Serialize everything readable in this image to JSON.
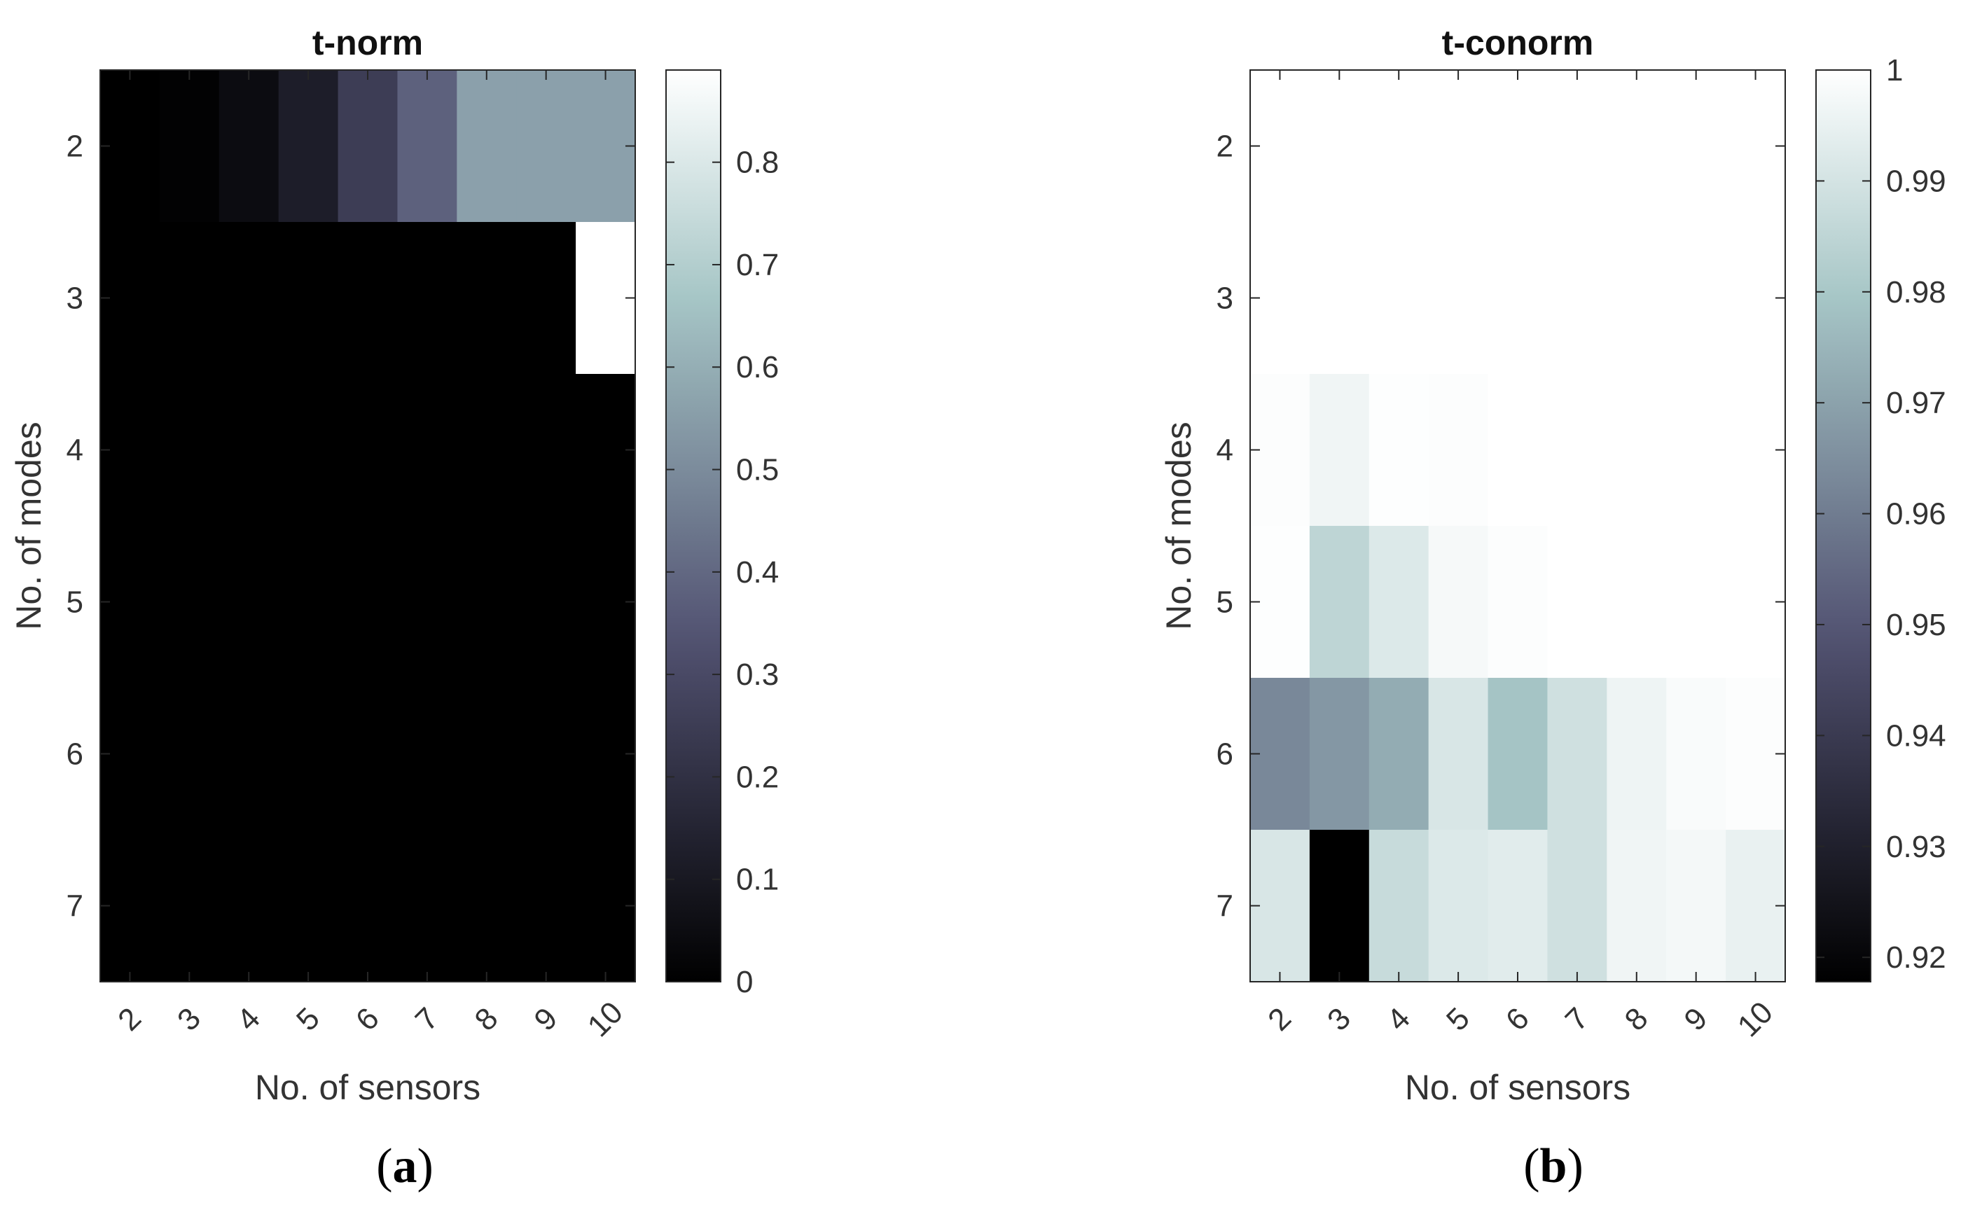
{
  "chart_data": [
    {
      "type": "heatmap",
      "title": "t-norm",
      "xlabel": "No. of sensors",
      "ylabel": "No. of modes",
      "x_categories": [
        "2",
        "3",
        "4",
        "5",
        "6",
        "7",
        "8",
        "9",
        "10"
      ],
      "y_categories": [
        "2",
        "3",
        "4",
        "5",
        "6",
        "7"
      ],
      "values": [
        [
          0.0,
          0.01,
          0.05,
          0.12,
          0.25,
          0.38,
          0.56,
          0.56,
          0.56
        ],
        [
          0.0,
          0.0,
          0.0,
          0.0,
          0.0,
          0.0,
          0.0,
          0.0,
          0.89
        ],
        [
          0.0,
          0.0,
          0.0,
          0.0,
          0.0,
          0.0,
          0.0,
          0.0,
          0.0
        ],
        [
          0.0,
          0.0,
          0.0,
          0.0,
          0.0,
          0.0,
          0.0,
          0.0,
          0.0
        ],
        [
          0.0,
          0.0,
          0.0,
          0.0,
          0.0,
          0.0,
          0.0,
          0.0,
          0.0
        ],
        [
          0.0,
          0.0,
          0.0,
          0.0,
          0.0,
          0.0,
          0.0,
          0.0,
          0.0
        ]
      ],
      "colorbar": {
        "range": [
          0,
          0.89
        ],
        "ticks": [
          0,
          0.1,
          0.2,
          0.3,
          0.4,
          0.5,
          0.6,
          0.7,
          0.8
        ]
      },
      "panel_label_open": "(",
      "panel_label_letter": "a",
      "panel_label_close": ")"
    },
    {
      "type": "heatmap",
      "title": "t-conorm",
      "xlabel": "No. of sensors",
      "ylabel": "No. of modes",
      "x_categories": [
        "2",
        "3",
        "4",
        "5",
        "6",
        "7",
        "8",
        "9",
        "10"
      ],
      "y_categories": [
        "2",
        "3",
        "4",
        "5",
        "6",
        "7"
      ],
      "values": [
        [
          1.0,
          1.0,
          1.0,
          1.0,
          1.0,
          1.0,
          1.0,
          1.0,
          1.0
        ],
        [
          1.0,
          1.0,
          1.0,
          1.0,
          1.0,
          1.0,
          1.0,
          1.0,
          1.0
        ],
        [
          0.9993,
          0.9965,
          0.9995,
          0.9993,
          1.0,
          1.0,
          1.0,
          1.0,
          1.0
        ],
        [
          0.9995,
          0.985,
          0.992,
          0.998,
          0.9993,
          1.0,
          1.0,
          1.0,
          1.0
        ],
        [
          0.963,
          0.967,
          0.9725,
          0.991,
          0.979,
          0.989,
          0.996,
          0.9985,
          0.9993
        ],
        [
          0.991,
          0.9178,
          0.987,
          0.992,
          0.993,
          0.989,
          0.9965,
          0.9975,
          0.995
        ]
      ],
      "colorbar": {
        "range": [
          0.9178,
          1.0
        ],
        "ticks": [
          0.92,
          0.93,
          0.94,
          0.95,
          0.96,
          0.97,
          0.98,
          0.99,
          1
        ]
      },
      "panel_label_open": "(",
      "panel_label_letter": "b",
      "panel_label_close": ")"
    }
  ]
}
